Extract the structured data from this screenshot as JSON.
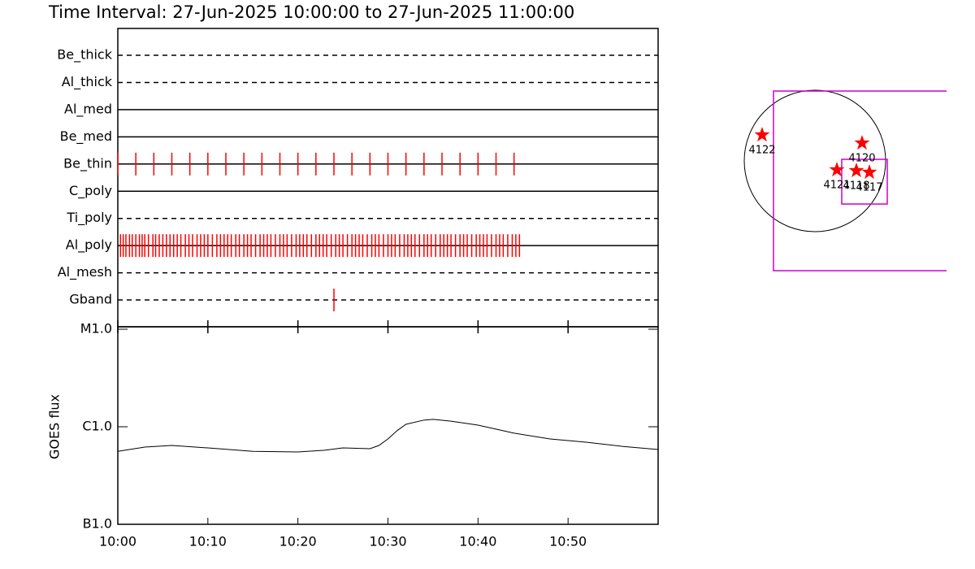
{
  "chart_data": [
    {
      "type": "timeline",
      "title": "Time Interval: 27-Jun-2025 10:00:00 to 27-Jun-2025 11:00:00",
      "categories": [
        "Be_thick",
        "Al_thick",
        "Al_med",
        "Be_med",
        "Be_thin",
        "C_poly",
        "Ti_poly",
        "Al_poly",
        "Al_mesh",
        "Gband"
      ],
      "line_styles": [
        "dashed",
        "dashed",
        "solid",
        "solid",
        "solid",
        "solid",
        "dashed",
        "solid",
        "dashed",
        "dashed"
      ],
      "x": [
        [],
        [],
        [],
        [],
        [
          0,
          2,
          4,
          6,
          8,
          10,
          12,
          14,
          16,
          18,
          20,
          22,
          24,
          26,
          28,
          30,
          32,
          34,
          36,
          38,
          40,
          42,
          44
        ],
        [],
        [],
        [
          0.3,
          0.6,
          0.9,
          1.3,
          1.6,
          2.0,
          2.4,
          2.7,
          3.0,
          3.4,
          3.9,
          4.2,
          4.6,
          5.0,
          5.4,
          5.8,
          6.2,
          6.6,
          7.0,
          7.5,
          7.9,
          8.3,
          8.8,
          9.2,
          9.6,
          10.0,
          10.5,
          11.0,
          11.4,
          11.8,
          12.2,
          12.6,
          13.1,
          13.5,
          14.0,
          14.4,
          14.8,
          15.3,
          15.8,
          16.2,
          16.6,
          17.0,
          17.5,
          18.0,
          18.4,
          18.8,
          19.3,
          19.8,
          20.2,
          20.6,
          21.0,
          21.5,
          22.0,
          22.4,
          22.8,
          23.2,
          23.7,
          24.2,
          24.6,
          25.0,
          25.5,
          26.0,
          26.4,
          26.8,
          27.2,
          27.7,
          28.2,
          28.6,
          29.0,
          29.5,
          30.0,
          30.4,
          30.8,
          31.3,
          31.8,
          32.2,
          32.6,
          33.0,
          33.5,
          34.0,
          34.4,
          34.8,
          35.3,
          35.8,
          36.2,
          36.6,
          37.0,
          37.5,
          38.0,
          38.4,
          38.8,
          39.3,
          39.8,
          40.2,
          40.6,
          41.0,
          41.5,
          42.0,
          42.4,
          42.8,
          43.3,
          43.8,
          44.2,
          44.6
        ],
        [],
        [
          24
        ]
      ],
      "color": "#ff0000",
      "xlim": [
        0,
        60
      ]
    },
    {
      "type": "line",
      "ylabel": "GOES flux",
      "x": [
        0,
        3,
        6,
        10,
        15,
        20,
        23,
        25,
        28,
        29,
        30,
        31,
        32,
        34,
        35,
        37,
        40,
        44,
        48,
        52,
        56,
        60
      ],
      "values": [
        5.6e-07,
        6.19e-07,
        6.43e-07,
        6.07e-07,
        5.6e-07,
        5.52e-07,
        5.74e-07,
        6.07e-07,
        5.96e-07,
        6.43e-07,
        7.5e-07,
        9.1e-07,
        1.06e-06,
        1.17e-06,
        1.19e-06,
        1.14e-06,
        1.04e-06,
        8.6e-07,
        7.5e-07,
        6.95e-07,
        6.3e-07,
        5.85e-07
      ],
      "color": "#000000",
      "xlim": [
        0,
        60
      ],
      "xticks": [
        {
          "value": 0,
          "label": "10:00"
        },
        {
          "value": 10,
          "label": "10:10"
        },
        {
          "value": 20,
          "label": "10:20"
        },
        {
          "value": 30,
          "label": "10:30"
        },
        {
          "value": 40,
          "label": "10:40"
        },
        {
          "value": 50,
          "label": "10:50"
        }
      ],
      "ylim": [
        1e-07,
        1e-05
      ],
      "log_y": true,
      "yticks": [
        {
          "value": 1e-07,
          "label": "B1.0"
        },
        {
          "value": 1e-06,
          "label": "C1.0"
        },
        {
          "value": 1e-05,
          "label": "M1.0"
        }
      ]
    }
  ],
  "map": {
    "regions": [
      "4122",
      "4120",
      "4121",
      "4118",
      "4117"
    ],
    "region_color": "#ff0000",
    "box_color": "#cc00cc"
  }
}
